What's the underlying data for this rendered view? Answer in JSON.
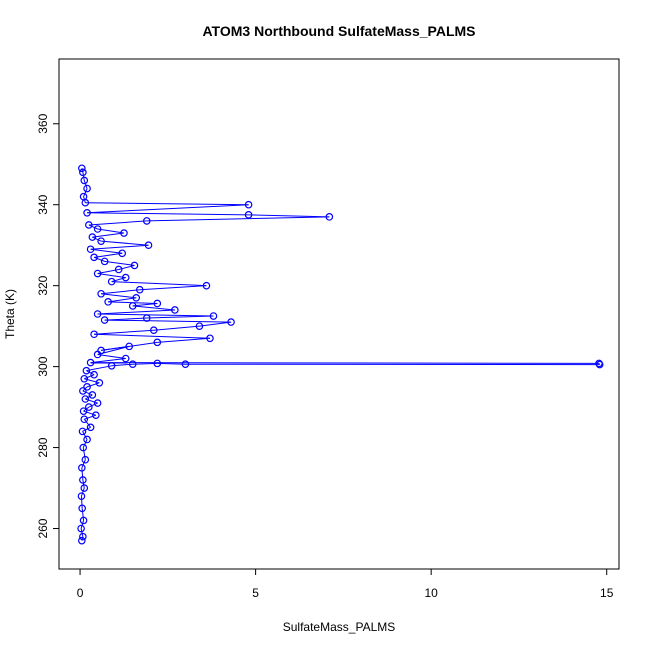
{
  "chart_data": {
    "type": "line",
    "title": "ATOM3 Northbound SulfateMass_PALMS",
    "xlabel": "SulfateMass_PALMS",
    "ylabel": "Theta (K)",
    "xlim": [
      -0.6,
      15.35
    ],
    "ylim": [
      250,
      376
    ],
    "x_ticks": [
      0,
      5,
      10,
      15
    ],
    "y_ticks": [
      260,
      280,
      300,
      320,
      340,
      360
    ],
    "grid": false,
    "legend": "none",
    "series": [
      {
        "color": "#0000ff",
        "marker": "open-circle",
        "points": [
          [
            0.05,
            257
          ],
          [
            0.08,
            258
          ],
          [
            0.03,
            260
          ],
          [
            0.1,
            262
          ],
          [
            0.06,
            265
          ],
          [
            0.04,
            268
          ],
          [
            0.12,
            270
          ],
          [
            0.08,
            272
          ],
          [
            0.05,
            275
          ],
          [
            0.15,
            277
          ],
          [
            0.09,
            280
          ],
          [
            0.2,
            282
          ],
          [
            0.07,
            284
          ],
          [
            0.3,
            285
          ],
          [
            0.12,
            287
          ],
          [
            0.45,
            288
          ],
          [
            0.1,
            289
          ],
          [
            0.25,
            290
          ],
          [
            0.5,
            291
          ],
          [
            0.15,
            292
          ],
          [
            0.35,
            293
          ],
          [
            0.08,
            294
          ],
          [
            0.2,
            295
          ],
          [
            0.55,
            296
          ],
          [
            0.12,
            297
          ],
          [
            0.4,
            298
          ],
          [
            0.18,
            299
          ],
          [
            0.9,
            300.2
          ],
          [
            1.5,
            300.6
          ],
          [
            2.2,
            300.8
          ],
          [
            3.0,
            300.6
          ],
          [
            14.8,
            300.5
          ],
          [
            14.78,
            300.8
          ],
          [
            0.3,
            301
          ],
          [
            1.3,
            302
          ],
          [
            0.5,
            303
          ],
          [
            1.4,
            305
          ],
          [
            0.6,
            304
          ],
          [
            2.2,
            306
          ],
          [
            3.7,
            307
          ],
          [
            0.4,
            308
          ],
          [
            2.1,
            309
          ],
          [
            3.4,
            310
          ],
          [
            4.3,
            311
          ],
          [
            0.7,
            311.5
          ],
          [
            1.9,
            312
          ],
          [
            3.8,
            312.5
          ],
          [
            0.5,
            313
          ],
          [
            2.7,
            314
          ],
          [
            1.5,
            315
          ],
          [
            2.2,
            315.6
          ],
          [
            0.8,
            316
          ],
          [
            1.6,
            317
          ],
          [
            0.6,
            318
          ],
          [
            1.7,
            319
          ],
          [
            3.6,
            320
          ],
          [
            0.9,
            321
          ],
          [
            1.3,
            322
          ],
          [
            0.5,
            323
          ],
          [
            1.1,
            324
          ],
          [
            1.55,
            325
          ],
          [
            0.7,
            326
          ],
          [
            0.4,
            327
          ],
          [
            1.2,
            328
          ],
          [
            0.3,
            329
          ],
          [
            1.95,
            330
          ],
          [
            0.6,
            331
          ],
          [
            0.35,
            332
          ],
          [
            1.25,
            333
          ],
          [
            0.5,
            334
          ],
          [
            0.25,
            335
          ],
          [
            1.9,
            336
          ],
          [
            7.1,
            337
          ],
          [
            4.8,
            337.5
          ],
          [
            0.2,
            338
          ],
          [
            4.8,
            340
          ],
          [
            0.15,
            340.5
          ],
          [
            0.1,
            342
          ],
          [
            0.2,
            344
          ],
          [
            0.12,
            346
          ],
          [
            0.08,
            348
          ],
          [
            0.05,
            349
          ]
        ]
      }
    ]
  }
}
